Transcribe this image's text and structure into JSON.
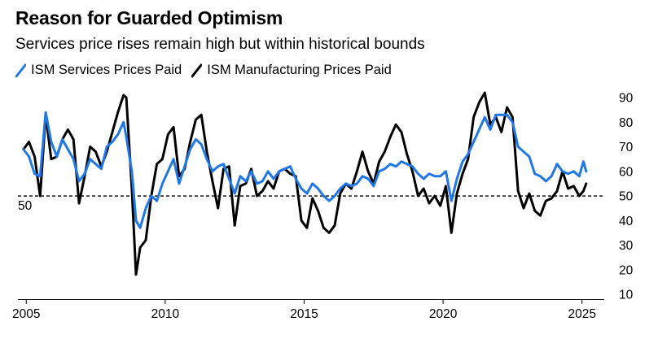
{
  "chart_data": {
    "type": "line",
    "title": "Reason for Guarded Optimism",
    "subtitle": "Services price rises remain high but within historical bounds",
    "xlabel": "",
    "ylabel": "",
    "x_ticks": [
      "2005",
      "2010",
      "2015",
      "2020",
      "2025"
    ],
    "y_ticks": [
      "90",
      "80",
      "70",
      "60",
      "50",
      "40",
      "30",
      "20",
      "10"
    ],
    "xlim": [
      2004.7,
      2025.8
    ],
    "ylim": [
      10,
      92
    ],
    "reference_line": {
      "value": 50,
      "label": "50",
      "style": "dashed"
    },
    "legend_position": "top-left",
    "colors": {
      "services": "#1f77e8",
      "manufacturing": "#000000"
    },
    "series": [
      {
        "name": "ISM Services Prices Paid",
        "points": [
          [
            2004.9,
            69
          ],
          [
            2005.1,
            66
          ],
          [
            2005.3,
            59
          ],
          [
            2005.5,
            58
          ],
          [
            2005.7,
            84
          ],
          [
            2005.9,
            72
          ],
          [
            2006.1,
            66
          ],
          [
            2006.3,
            73
          ],
          [
            2006.5,
            69
          ],
          [
            2006.7,
            65
          ],
          [
            2006.9,
            56
          ],
          [
            2007.1,
            59
          ],
          [
            2007.3,
            65
          ],
          [
            2007.5,
            63
          ],
          [
            2007.7,
            61
          ],
          [
            2007.9,
            70
          ],
          [
            2008.1,
            72
          ],
          [
            2008.3,
            75
          ],
          [
            2008.5,
            80
          ],
          [
            2008.6,
            74
          ],
          [
            2008.8,
            60
          ],
          [
            2008.95,
            40
          ],
          [
            2009.1,
            37
          ],
          [
            2009.3,
            45
          ],
          [
            2009.5,
            50
          ],
          [
            2009.7,
            48
          ],
          [
            2009.9,
            55
          ],
          [
            2010.1,
            60
          ],
          [
            2010.3,
            65
          ],
          [
            2010.5,
            55
          ],
          [
            2010.7,
            62
          ],
          [
            2010.9,
            69
          ],
          [
            2011.1,
            73
          ],
          [
            2011.3,
            71
          ],
          [
            2011.5,
            65
          ],
          [
            2011.7,
            60
          ],
          [
            2011.9,
            62
          ],
          [
            2012.1,
            63
          ],
          [
            2012.3,
            57
          ],
          [
            2012.5,
            51
          ],
          [
            2012.7,
            58
          ],
          [
            2012.9,
            56
          ],
          [
            2013.1,
            60
          ],
          [
            2013.3,
            55
          ],
          [
            2013.5,
            56
          ],
          [
            2013.7,
            60
          ],
          [
            2013.9,
            57
          ],
          [
            2014.1,
            60
          ],
          [
            2014.3,
            61
          ],
          [
            2014.5,
            62
          ],
          [
            2014.7,
            57
          ],
          [
            2014.9,
            53
          ],
          [
            2015.1,
            51
          ],
          [
            2015.3,
            55
          ],
          [
            2015.5,
            53
          ],
          [
            2015.7,
            50
          ],
          [
            2015.9,
            48
          ],
          [
            2016.1,
            50
          ],
          [
            2016.3,
            53
          ],
          [
            2016.5,
            55
          ],
          [
            2016.7,
            54
          ],
          [
            2016.9,
            55
          ],
          [
            2017.1,
            58
          ],
          [
            2017.3,
            57
          ],
          [
            2017.5,
            54
          ],
          [
            2017.7,
            60
          ],
          [
            2017.9,
            61
          ],
          [
            2018.1,
            63
          ],
          [
            2018.3,
            62
          ],
          [
            2018.5,
            64
          ],
          [
            2018.7,
            63
          ],
          [
            2018.9,
            62
          ],
          [
            2019.1,
            59
          ],
          [
            2019.3,
            57
          ],
          [
            2019.5,
            59
          ],
          [
            2019.7,
            58
          ],
          [
            2019.9,
            58
          ],
          [
            2020.1,
            60
          ],
          [
            2020.3,
            48
          ],
          [
            2020.5,
            57
          ],
          [
            2020.7,
            64
          ],
          [
            2020.9,
            67
          ],
          [
            2021.1,
            72
          ],
          [
            2021.3,
            77
          ],
          [
            2021.5,
            82
          ],
          [
            2021.7,
            77
          ],
          [
            2021.9,
            83
          ],
          [
            2022.1,
            83
          ],
          [
            2022.3,
            83
          ],
          [
            2022.5,
            80
          ],
          [
            2022.7,
            70
          ],
          [
            2022.9,
            68
          ],
          [
            2023.1,
            66
          ],
          [
            2023.3,
            59
          ],
          [
            2023.5,
            58
          ],
          [
            2023.7,
            56
          ],
          [
            2023.9,
            58
          ],
          [
            2024.1,
            63
          ],
          [
            2024.3,
            60
          ],
          [
            2024.5,
            59
          ],
          [
            2024.7,
            60
          ],
          [
            2024.9,
            58
          ],
          [
            2025.05,
            64
          ],
          [
            2025.15,
            60
          ]
        ]
      },
      {
        "name": "ISM Manufacturing Prices Paid",
        "points": [
          [
            2004.9,
            69
          ],
          [
            2005.1,
            72
          ],
          [
            2005.3,
            66
          ],
          [
            2005.5,
            50
          ],
          [
            2005.7,
            83
          ],
          [
            2005.9,
            65
          ],
          [
            2006.1,
            66
          ],
          [
            2006.3,
            73
          ],
          [
            2006.5,
            77
          ],
          [
            2006.7,
            73
          ],
          [
            2006.9,
            47
          ],
          [
            2007.1,
            58
          ],
          [
            2007.3,
            70
          ],
          [
            2007.5,
            68
          ],
          [
            2007.7,
            62
          ],
          [
            2007.9,
            68
          ],
          [
            2008.1,
            76
          ],
          [
            2008.3,
            84
          ],
          [
            2008.5,
            91
          ],
          [
            2008.6,
            90
          ],
          [
            2008.8,
            53
          ],
          [
            2008.95,
            18
          ],
          [
            2009.1,
            29
          ],
          [
            2009.3,
            32
          ],
          [
            2009.5,
            50
          ],
          [
            2009.7,
            63
          ],
          [
            2009.9,
            65
          ],
          [
            2010.1,
            75
          ],
          [
            2010.3,
            78
          ],
          [
            2010.5,
            58
          ],
          [
            2010.7,
            61
          ],
          [
            2010.9,
            72
          ],
          [
            2011.1,
            81
          ],
          [
            2011.3,
            83
          ],
          [
            2011.5,
            68
          ],
          [
            2011.7,
            56
          ],
          [
            2011.9,
            45
          ],
          [
            2012.1,
            61
          ],
          [
            2012.3,
            62
          ],
          [
            2012.5,
            38
          ],
          [
            2012.7,
            54
          ],
          [
            2012.9,
            55
          ],
          [
            2013.1,
            61
          ],
          [
            2013.3,
            50
          ],
          [
            2013.5,
            52
          ],
          [
            2013.7,
            56
          ],
          [
            2013.9,
            53
          ],
          [
            2014.1,
            60
          ],
          [
            2014.3,
            61
          ],
          [
            2014.5,
            59
          ],
          [
            2014.7,
            58
          ],
          [
            2014.9,
            40
          ],
          [
            2015.1,
            37
          ],
          [
            2015.3,
            49
          ],
          [
            2015.5,
            44
          ],
          [
            2015.7,
            37
          ],
          [
            2015.9,
            35
          ],
          [
            2016.1,
            38
          ],
          [
            2016.3,
            51
          ],
          [
            2016.5,
            55
          ],
          [
            2016.7,
            53
          ],
          [
            2016.9,
            60
          ],
          [
            2017.1,
            68
          ],
          [
            2017.3,
            60
          ],
          [
            2017.5,
            55
          ],
          [
            2017.7,
            64
          ],
          [
            2017.9,
            68
          ],
          [
            2018.1,
            74
          ],
          [
            2018.3,
            79
          ],
          [
            2018.5,
            76
          ],
          [
            2018.7,
            67
          ],
          [
            2018.9,
            60
          ],
          [
            2019.1,
            50
          ],
          [
            2019.3,
            53
          ],
          [
            2019.5,
            47
          ],
          [
            2019.7,
            50
          ],
          [
            2019.9,
            46
          ],
          [
            2020.1,
            54
          ],
          [
            2020.3,
            35
          ],
          [
            2020.5,
            51
          ],
          [
            2020.7,
            59
          ],
          [
            2020.9,
            65
          ],
          [
            2021.1,
            82
          ],
          [
            2021.3,
            88
          ],
          [
            2021.5,
            92
          ],
          [
            2021.7,
            79
          ],
          [
            2021.9,
            82
          ],
          [
            2022.1,
            76
          ],
          [
            2022.3,
            86
          ],
          [
            2022.5,
            82
          ],
          [
            2022.7,
            52
          ],
          [
            2022.9,
            45
          ],
          [
            2023.1,
            51
          ],
          [
            2023.3,
            44
          ],
          [
            2023.5,
            42
          ],
          [
            2023.7,
            48
          ],
          [
            2023.9,
            49
          ],
          [
            2024.1,
            52
          ],
          [
            2024.3,
            60
          ],
          [
            2024.5,
            53
          ],
          [
            2024.7,
            54
          ],
          [
            2024.9,
            50
          ],
          [
            2025.05,
            52
          ],
          [
            2025.15,
            55
          ]
        ]
      }
    ]
  }
}
